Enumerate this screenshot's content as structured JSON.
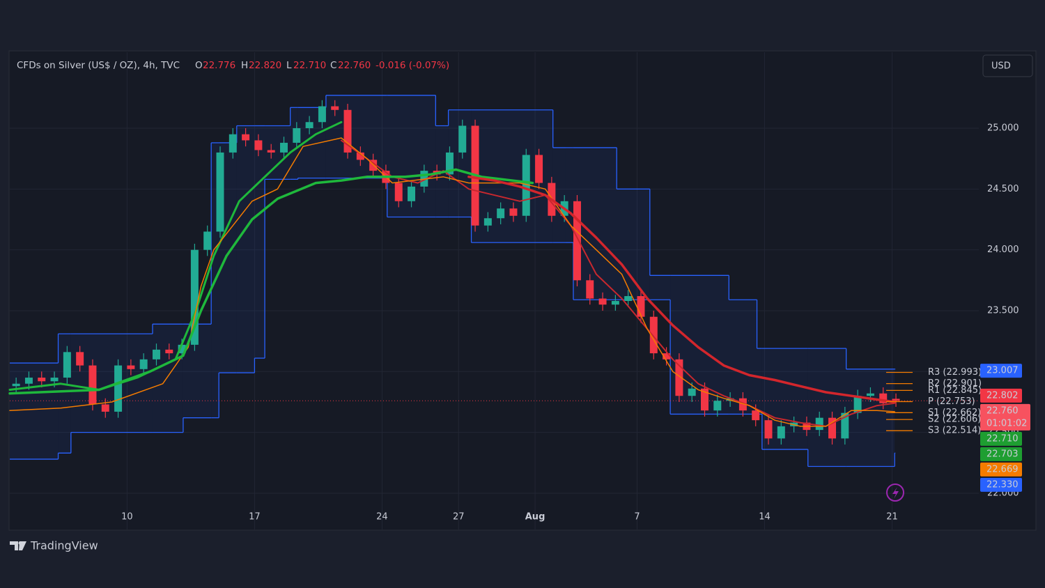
{
  "chart_data": {
    "type": "candlestick",
    "legend": {
      "symbol": "CFDs on Silver (US$ / OZ), 4h, TVC",
      "open": {
        "letter": "O",
        "value": 22.776,
        "label": "22.776"
      },
      "high": {
        "letter": "H",
        "value": 22.82,
        "label": "22.820"
      },
      "low": {
        "letter": "L",
        "value": 22.71,
        "label": "22.710"
      },
      "close": {
        "letter": "C",
        "value": 22.76,
        "label": "22.760"
      },
      "change": {
        "value": -0.016,
        "percent": -0.07,
        "label": "-0.016 (-0.07%)"
      }
    },
    "xlim": [
      0,
      38
    ],
    "ylim": [
      21.702,
      25.624
    ],
    "xticks": [
      {
        "value": 4.6,
        "label": "10"
      },
      {
        "value": 9.6,
        "label": "17"
      },
      {
        "value": 14.6,
        "label": "24"
      },
      {
        "value": 17.6,
        "label": "27"
      },
      {
        "value": 20.6,
        "label": "Aug"
      },
      {
        "value": 24.6,
        "label": "7"
      },
      {
        "value": 29.6,
        "label": "14"
      },
      {
        "value": 34.6,
        "label": "21"
      }
    ],
    "yticks": [
      {
        "value": 22,
        "label": "22.000"
      },
      {
        "value": 22.5,
        "label": "22.500"
      },
      {
        "value": 23,
        "label": "23.000"
      },
      {
        "value": 23.5,
        "label": "23.500"
      },
      {
        "value": 24,
        "label": "24.000"
      },
      {
        "value": 24.5,
        "label": "24.500"
      },
      {
        "value": 25,
        "label": "25.000"
      }
    ],
    "grid": true,
    "up_color": "#22ab94",
    "down_color": "#f23645",
    "candles": {
      "x": [
        0.25,
        0.75,
        1.25,
        1.75,
        2.25,
        2.75,
        3.25,
        3.75,
        4.25,
        4.75,
        5.25,
        5.75,
        6.25,
        6.75,
        7.25,
        7.75,
        8.25,
        8.75,
        9.25,
        9.75,
        10.25,
        10.75,
        11.25,
        11.75,
        12.25,
        12.75,
        13.25,
        13.75,
        14.25,
        14.75,
        15.25,
        15.75,
        16.25,
        16.75,
        17.25,
        17.75,
        18.25,
        18.75,
        19.25,
        19.75,
        20.25,
        20.75,
        21.25,
        21.75,
        22.25,
        22.75,
        23.25,
        23.75,
        24.25,
        24.75,
        25.25,
        25.75,
        26.25,
        26.75,
        27.25,
        27.75,
        28.25,
        28.75,
        29.25,
        29.75,
        30.25,
        30.75,
        31.25,
        31.75,
        32.25,
        32.75,
        33.25,
        33.75,
        34.25,
        34.75
      ],
      "open": [
        22.88,
        22.9,
        22.95,
        22.92,
        22.95,
        23.16,
        23.05,
        22.73,
        22.67,
        23.05,
        23.02,
        23.1,
        23.18,
        23.15,
        23.22,
        24.0,
        24.15,
        24.8,
        24.95,
        24.9,
        24.82,
        24.8,
        24.88,
        25.0,
        25.05,
        25.18,
        25.15,
        24.8,
        24.74,
        24.65,
        24.55,
        24.4,
        24.52,
        24.65,
        24.62,
        24.8,
        25.02,
        24.2,
        24.26,
        24.34,
        24.28,
        24.78,
        24.55,
        24.28,
        24.4,
        23.75,
        23.6,
        23.55,
        23.58,
        23.62,
        23.45,
        23.15,
        23.1,
        22.8,
        22.86,
        22.68,
        22.76,
        22.78,
        22.68,
        22.6,
        22.45,
        22.55,
        22.58,
        22.52,
        22.62,
        22.45,
        22.66,
        22.8,
        22.82,
        22.776
      ],
      "high": [
        22.95,
        23.0,
        23.0,
        23.0,
        23.21,
        23.21,
        23.1,
        22.78,
        23.1,
        23.1,
        23.15,
        23.23,
        23.23,
        23.27,
        24.05,
        24.2,
        24.85,
        25.0,
        25.0,
        24.95,
        24.87,
        24.93,
        25.05,
        25.1,
        25.23,
        25.23,
        25.2,
        24.85,
        24.79,
        24.7,
        24.6,
        24.57,
        24.7,
        24.7,
        24.85,
        25.07,
        25.07,
        24.31,
        24.39,
        24.39,
        24.83,
        24.83,
        24.6,
        24.45,
        24.45,
        23.8,
        23.65,
        23.63,
        23.67,
        23.67,
        23.5,
        23.2,
        23.15,
        22.91,
        22.91,
        22.81,
        22.83,
        22.83,
        22.73,
        22.65,
        22.6,
        22.63,
        22.63,
        22.67,
        22.67,
        22.71,
        22.85,
        22.87,
        22.87,
        22.82
      ],
      "low": [
        22.83,
        22.85,
        22.87,
        22.87,
        22.9,
        23.0,
        22.68,
        22.62,
        22.62,
        22.97,
        22.97,
        23.05,
        23.1,
        23.1,
        23.17,
        23.95,
        24.1,
        24.75,
        24.85,
        24.77,
        24.75,
        24.75,
        24.83,
        24.95,
        25.0,
        25.1,
        24.75,
        24.69,
        24.6,
        24.5,
        24.35,
        24.35,
        24.47,
        24.57,
        24.57,
        24.75,
        24.15,
        24.15,
        24.21,
        24.23,
        24.23,
        24.5,
        24.23,
        24.23,
        23.7,
        23.55,
        23.5,
        23.5,
        23.53,
        23.4,
        23.1,
        23.05,
        22.75,
        22.75,
        22.63,
        22.63,
        22.71,
        22.63,
        22.55,
        22.4,
        22.4,
        22.5,
        22.47,
        22.47,
        22.4,
        22.4,
        22.61,
        22.75,
        22.69,
        22.71
      ],
      "close": [
        22.9,
        22.95,
        22.92,
        22.95,
        23.16,
        23.05,
        22.73,
        22.67,
        23.05,
        23.02,
        23.1,
        23.18,
        23.15,
        23.22,
        24.0,
        24.15,
        24.8,
        24.95,
        24.9,
        24.82,
        24.8,
        24.88,
        25.0,
        25.05,
        25.18,
        25.15,
        24.8,
        24.74,
        24.65,
        24.55,
        24.4,
        24.52,
        24.65,
        24.62,
        24.8,
        25.02,
        24.2,
        24.26,
        24.34,
        24.28,
        24.78,
        24.55,
        24.28,
        24.4,
        23.75,
        23.6,
        23.55,
        23.58,
        23.62,
        23.45,
        23.15,
        23.1,
        22.8,
        22.86,
        22.68,
        22.76,
        22.78,
        22.68,
        22.6,
        22.45,
        22.55,
        22.58,
        22.52,
        22.62,
        22.45,
        22.66,
        22.8,
        22.82,
        22.74,
        22.76
      ]
    },
    "channel": {
      "color": "#2962ff",
      "x": [
        0,
        1.9,
        2.4,
        5.6,
        6.8,
        7.9,
        8.2,
        8.9,
        9.6,
        10.0,
        11.0,
        11.3,
        12.4,
        14.8,
        16.7,
        17.2,
        18.1,
        21.3,
        21.8,
        22.1,
        23.8,
        25.1,
        25.9,
        28.2,
        29.3,
        29.5,
        31.3,
        32.8,
        34.7
      ],
      "upper": [
        23.07,
        23.31,
        23.31,
        23.39,
        23.39,
        24.88,
        24.88,
        25.02,
        25.02,
        25.02,
        25.17,
        25.17,
        25.27,
        25.27,
        25.02,
        25.15,
        25.15,
        24.84,
        24.84,
        24.84,
        24.5,
        23.79,
        23.79,
        23.59,
        23.19,
        23.19,
        23.19,
        23.02,
        23.02
      ],
      "lower": [
        22.28,
        22.33,
        22.5,
        22.5,
        22.62,
        22.62,
        22.99,
        22.99,
        23.11,
        24.58,
        24.58,
        24.59,
        24.59,
        24.27,
        24.27,
        24.27,
        24.06,
        24.06,
        24.06,
        23.59,
        23.59,
        23.59,
        22.65,
        22.65,
        22.65,
        22.36,
        22.22,
        22.22,
        22.33
      ]
    },
    "lines": [
      {
        "color": "#1fb83c",
        "width": 3,
        "x": [
          0,
          2,
          3.5,
          5,
          6.5,
          7.3,
          8,
          9,
          10,
          11,
          12,
          13
        ],
        "values": [
          22.85,
          22.9,
          22.85,
          22.95,
          23.1,
          23.5,
          23.95,
          24.4,
          24.6,
          24.8,
          24.95,
          25.05
        ]
      },
      {
        "color": "#c8282e",
        "width": 2,
        "x": [
          13,
          14,
          15,
          16,
          17,
          18,
          20,
          21,
          22,
          23,
          24,
          25,
          26,
          27,
          28,
          29,
          30,
          31,
          32,
          33,
          34,
          34.7
        ],
        "values": [
          24.9,
          24.75,
          24.6,
          24.55,
          24.65,
          24.5,
          24.4,
          24.45,
          24.2,
          23.8,
          23.6,
          23.35,
          23.1,
          22.9,
          22.8,
          22.72,
          22.62,
          22.58,
          22.55,
          22.65,
          22.72,
          22.74
        ]
      },
      {
        "color": "#f57c00",
        "width": 1.5,
        "x": [
          0,
          2,
          4,
          6,
          7,
          7.5,
          8,
          9.5,
          10.5,
          11.5,
          13,
          14,
          15,
          17,
          18,
          20,
          21,
          22,
          23,
          24,
          25,
          26,
          27,
          28,
          29,
          30,
          31,
          32,
          33,
          34,
          34.7
        ],
        "values": [
          22.68,
          22.7,
          22.75,
          22.9,
          23.2,
          23.7,
          24.0,
          24.4,
          24.5,
          24.85,
          24.92,
          24.75,
          24.55,
          24.6,
          24.55,
          24.55,
          24.5,
          24.2,
          24.0,
          23.8,
          23.35,
          23.0,
          22.85,
          22.78,
          22.72,
          22.6,
          22.55,
          22.55,
          22.68,
          22.68,
          22.67
        ]
      },
      {
        "color": "#1fb83c",
        "width": 3.5,
        "x": [
          0,
          3.5,
          5.5,
          6.8,
          7.5,
          8.5,
          9.5,
          10.5,
          12,
          13,
          14,
          15.5,
          16.5,
          17.5,
          18.5,
          20.5
        ],
        "values": [
          22.82,
          22.85,
          23.0,
          23.13,
          23.5,
          23.95,
          24.25,
          24.42,
          24.55,
          24.57,
          24.6,
          24.6,
          24.62,
          24.66,
          24.6,
          24.55
        ]
      },
      {
        "color": "#d3262c",
        "width": 3.5,
        "x": [
          18,
          19,
          20,
          21,
          22,
          23,
          24,
          25,
          26,
          27,
          28,
          29,
          30,
          31,
          32,
          33,
          34,
          34.7
        ],
        "values": [
          24.6,
          24.57,
          24.52,
          24.45,
          24.3,
          24.1,
          23.88,
          23.6,
          23.38,
          23.2,
          23.05,
          22.97,
          22.93,
          22.88,
          22.83,
          22.8,
          22.77,
          22.75
        ]
      }
    ],
    "current_price": 22.76,
    "pivots": {
      "color": "#f57c00",
      "levels": [
        {
          "value": 22.993,
          "label": "R3 (22.993)"
        },
        {
          "value": 22.901,
          "label": "R2 (22.901)"
        },
        {
          "value": 22.845,
          "label": "R1 (22.845)"
        },
        {
          "value": 22.753,
          "label": "P (22.753)"
        },
        {
          "value": 22.662,
          "label": "S1 (22.662)"
        },
        {
          "value": 22.606,
          "label": "S2 (22.606)"
        },
        {
          "value": 22.514,
          "label": "S3 (22.514)"
        }
      ]
    },
    "price_tags": [
      {
        "value": 23.007,
        "label": "23.007",
        "color": "#2962ff"
      },
      {
        "value": 22.802,
        "label": "22.802",
        "color": "#f23645"
      },
      {
        "value": 22.76,
        "label": "22.760",
        "color": "#f7525f",
        "countdown": "01:01:02"
      },
      {
        "value": 22.71,
        "label": "22.710",
        "color": "#1e9e31"
      },
      {
        "value": 22.703,
        "label": "22.703",
        "color": "#1e9e31"
      },
      {
        "value": 22.669,
        "label": "22.669",
        "color": "#f57c00"
      },
      {
        "value": 22.33,
        "label": "22.330",
        "color": "#2962ff"
      }
    ]
  },
  "toolbar": {
    "currency": "USD"
  },
  "footer": {
    "brand": "TradingView"
  }
}
